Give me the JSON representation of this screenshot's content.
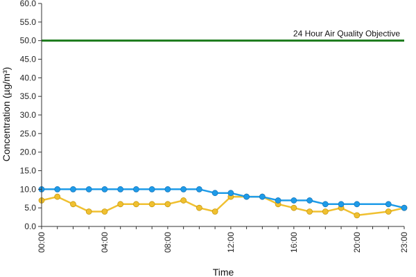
{
  "chart_data": {
    "type": "line",
    "xlabel": "Time",
    "ylabel": "Concentration (µg/m³)",
    "ylim": [
      0,
      60
    ],
    "yticks": [
      "0.0",
      "5.0",
      "10.0",
      "15.0",
      "20.0",
      "25.0",
      "30.0",
      "35.0",
      "40.0",
      "45.0",
      "50.0",
      "55.0",
      "60.0"
    ],
    "xticks": [
      {
        "hour": 0,
        "label": "00:00"
      },
      {
        "hour": 4,
        "label": "04:00"
      },
      {
        "hour": 8,
        "label": "08:00"
      },
      {
        "hour": 12,
        "label": "12:00"
      },
      {
        "hour": 16,
        "label": "16:00"
      },
      {
        "hour": 20,
        "label": "20:00"
      },
      {
        "hour": 23,
        "label": "23:00"
      }
    ],
    "x": [
      0,
      1,
      2,
      3,
      4,
      5,
      6,
      7,
      8,
      9,
      10,
      11,
      12,
      13,
      14,
      15,
      16,
      17,
      18,
      19,
      20,
      22,
      23
    ],
    "series": [
      {
        "color": "#1e9be8",
        "values": [
          10,
          10,
          10,
          10,
          10,
          10,
          10,
          10,
          10,
          10,
          10,
          9,
          9,
          8,
          8,
          7,
          7,
          7,
          6,
          6,
          6,
          6,
          5
        ]
      },
      {
        "color": "#f0c030",
        "values": [
          7,
          8,
          6,
          4,
          4,
          6,
          6,
          6,
          6,
          7,
          5,
          4,
          8,
          8,
          8,
          6,
          5,
          4,
          4,
          5,
          3,
          4,
          5
        ]
      }
    ],
    "reference_line": {
      "value": 50,
      "label": "24 Hour Air Quality Objective",
      "color": "#1a7a1a"
    },
    "grid": false
  }
}
